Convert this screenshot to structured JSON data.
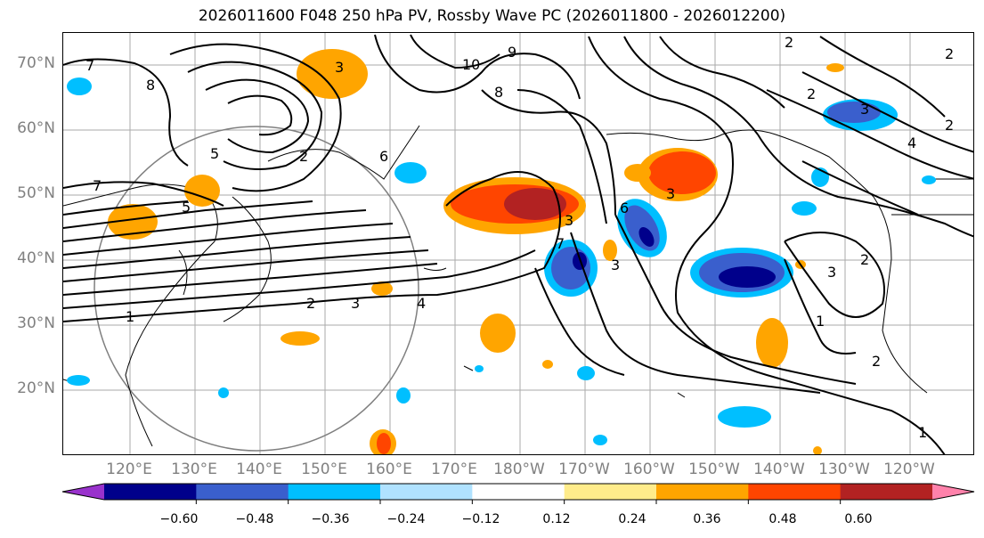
{
  "title": "2026011600 F048 250 hPa PV, Rossby Wave PC (2026011800 - 2026012200)",
  "lat_labels": [
    "70°N",
    "60°N",
    "50°N",
    "40°N",
    "30°N",
    "20°N"
  ],
  "lon_labels": [
    "120°E",
    "130°E",
    "140°E",
    "150°E",
    "160°E",
    "170°E",
    "180°W",
    "170°W",
    "160°W",
    "150°W",
    "140°W",
    "130°W",
    "120°W"
  ],
  "colorbar": {
    "ticks": [
      "−0.60",
      "−0.48",
      "−0.36",
      "−0.24",
      "−0.12",
      "0.12",
      "0.24",
      "0.36",
      "0.48",
      "0.60"
    ],
    "colors": [
      "#9932cc",
      "#00008b",
      "#3a5fcd",
      "#00bfff",
      "#b0e2ff",
      "#ffffff",
      "#ffec8b",
      "#ffa500",
      "#ff4500",
      "#b22222",
      "#ff82ab"
    ]
  },
  "contour_labels": [
    "7",
    "8",
    "10",
    "9",
    "8",
    "2",
    "3",
    "2",
    "5",
    "6",
    "7",
    "5",
    "4",
    "3",
    "2",
    "1",
    "6",
    "3",
    "3",
    "3",
    "7",
    "2",
    "3",
    "2",
    "1",
    "2",
    "1",
    "2",
    "2",
    "3",
    "4"
  ]
}
